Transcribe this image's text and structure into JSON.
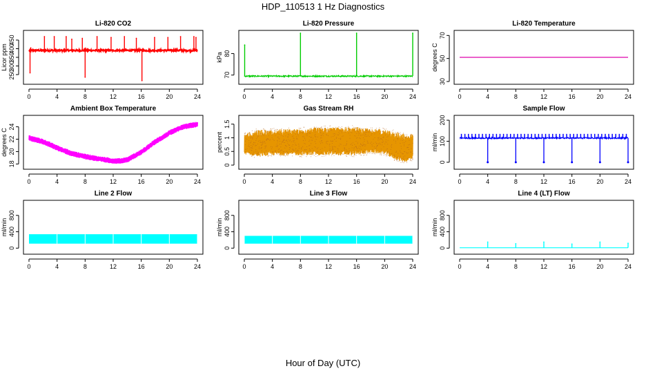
{
  "figure": {
    "title": "HDP_110513  1 Hz Diagnostics",
    "xlabel": "Hour of Day (UTC)"
  },
  "chart_data": [
    {
      "id": "co2",
      "type": "line",
      "title": "Li-820 CO2",
      "ylabel": "Licor ppm",
      "xlim": [
        0,
        24
      ],
      "ylim": [
        210,
        490
      ],
      "xticks": [
        0,
        4,
        8,
        12,
        16,
        20,
        24
      ],
      "yticks": [
        250,
        300,
        350,
        400,
        450
      ],
      "color": "#ff0000",
      "series": [
        {
          "name": "CO2",
          "baseline": 390,
          "noise": 5,
          "spikes": [
            {
              "x": 0.15,
              "y": 260
            },
            {
              "x": 0.25,
              "y": 405
            },
            {
              "x": 2.2,
              "y": 470
            },
            {
              "x": 3.6,
              "y": 470
            },
            {
              "x": 5.3,
              "y": 470
            },
            {
              "x": 6.1,
              "y": 455
            },
            {
              "x": 7.6,
              "y": 460
            },
            {
              "x": 8.0,
              "y": 235
            },
            {
              "x": 9.7,
              "y": 470
            },
            {
              "x": 11.7,
              "y": 465
            },
            {
              "x": 13.6,
              "y": 470
            },
            {
              "x": 15.3,
              "y": 460
            },
            {
              "x": 16.1,
              "y": 215
            },
            {
              "x": 17.9,
              "y": 465
            },
            {
              "x": 19.8,
              "y": 465
            },
            {
              "x": 21.6,
              "y": 470
            },
            {
              "x": 23.5,
              "y": 470
            },
            {
              "x": 23.8,
              "y": 465
            }
          ]
        }
      ]
    },
    {
      "id": "pressure",
      "type": "line",
      "title": "Li-820 Pressure",
      "ylabel": "kPa",
      "xlim": [
        0,
        24
      ],
      "ylim": [
        67,
        89.5
      ],
      "xticks": [
        0,
        4,
        8,
        12,
        16,
        20,
        24
      ],
      "yticks": [
        70,
        80
      ],
      "color": "#00cc00",
      "series": [
        {
          "name": "Pressure",
          "baseline": 69.5,
          "noise": 0.3,
          "spikes": [
            {
              "x": 0.05,
              "y": 84
            },
            {
              "x": 8.0,
              "y": 89.5
            },
            {
              "x": 16.0,
              "y": 89.5
            },
            {
              "x": 24.0,
              "y": 89.5
            }
          ]
        }
      ]
    },
    {
      "id": "licor-temp",
      "type": "line",
      "title": "Li-820 Temperature",
      "ylabel": "degrees C",
      "xlim": [
        0,
        24
      ],
      "ylim": [
        30,
        72
      ],
      "xticks": [
        0,
        4,
        8,
        12,
        16,
        20,
        24
      ],
      "yticks": [
        30,
        50,
        70
      ],
      "color": "#dd00aa",
      "series": [
        {
          "name": "Temperature",
          "baseline": 51,
          "noise": 0,
          "spikes": []
        }
      ]
    },
    {
      "id": "box-temp",
      "type": "line",
      "title": "Ambient Box Temperature",
      "ylabel": "degrees C",
      "xlim": [
        0,
        24
      ],
      "ylim": [
        17.6,
        25.4
      ],
      "xticks": [
        0,
        4,
        8,
        12,
        16,
        20,
        24
      ],
      "yticks": [
        18,
        20,
        22,
        24
      ],
      "color": "#ff00ff",
      "series": [
        {
          "name": "Box Temperature",
          "noise": 0.45,
          "x": [
            0,
            2,
            4,
            6,
            8,
            10,
            12,
            13,
            14,
            16,
            18,
            20,
            22,
            24
          ],
          "y": [
            22.2,
            21.6,
            20.6,
            19.7,
            19.2,
            18.8,
            18.5,
            18.5,
            18.7,
            19.9,
            21.6,
            23.0,
            24.0,
            24.4
          ]
        }
      ]
    },
    {
      "id": "rh",
      "type": "line",
      "title": "Gas Stream RH",
      "ylabel": "percent",
      "xlim": [
        0,
        24
      ],
      "ylim": [
        -0.05,
        1.72
      ],
      "xticks": [
        0,
        4,
        8,
        12,
        16,
        20,
        24
      ],
      "yticks": [
        0.0,
        0.5,
        1.0,
        1.5
      ],
      "color": "#e69500",
      "series": [
        {
          "name": "RH",
          "x": [
            0,
            2,
            4,
            8,
            12,
            16,
            18,
            20,
            21,
            22,
            23,
            24
          ],
          "low": [
            0.35,
            0.25,
            0.3,
            0.3,
            0.3,
            0.3,
            0.4,
            0.35,
            0.2,
            0.1,
            0.05,
            0.15
          ],
          "high": [
            1.2,
            1.35,
            1.35,
            1.4,
            1.45,
            1.45,
            1.4,
            1.35,
            1.3,
            1.25,
            1.2,
            1.2
          ]
        }
      ]
    },
    {
      "id": "sample-flow",
      "type": "line",
      "title": "Sample Flow",
      "ylabel": "ml/min",
      "xlim": [
        0,
        24
      ],
      "ylim": [
        -20,
        210
      ],
      "xticks": [
        0,
        4,
        8,
        12,
        16,
        20,
        24
      ],
      "yticks": [
        0,
        100,
        200
      ],
      "color": "#0000ff",
      "series": [
        {
          "name": "Sample Flow",
          "baseline": 115,
          "noise": 3,
          "spike_period": 0.5,
          "spike_value": 135,
          "dips": [
            4,
            8,
            12,
            16,
            20,
            24
          ],
          "dip_value": 0
        }
      ]
    },
    {
      "id": "line2-flow",
      "type": "line",
      "title": "Line 2 Flow",
      "ylabel": "ml/min",
      "xlim": [
        0,
        24
      ],
      "ylim": [
        -80,
        1100
      ],
      "xticks": [
        0,
        4,
        8,
        12,
        16,
        20,
        24
      ],
      "yticks": [
        0,
        400,
        800
      ],
      "color": "#00ffff",
      "series": [
        {
          "name": "Line 2 Flow",
          "band_low": 110,
          "band_high": 340,
          "gaps": [
            4,
            8,
            12,
            16,
            20,
            24
          ]
        }
      ]
    },
    {
      "id": "line3-flow",
      "type": "line",
      "title": "Line 3 Flow",
      "ylabel": "ml/min",
      "xlim": [
        0,
        24
      ],
      "ylim": [
        -80,
        1100
      ],
      "xticks": [
        0,
        4,
        8,
        12,
        16,
        20,
        24
      ],
      "yticks": [
        0,
        400,
        800
      ],
      "color": "#00ffff",
      "series": [
        {
          "name": "Line 3 Flow",
          "band_low": 110,
          "band_high": 300,
          "gaps": [
            0,
            4,
            8,
            12,
            16,
            20,
            24
          ]
        }
      ]
    },
    {
      "id": "line4-flow",
      "type": "line",
      "title": "Line 4 (LT) Flow",
      "ylabel": "ml/min",
      "xlim": [
        0,
        24
      ],
      "ylim": [
        -80,
        1100
      ],
      "xticks": [
        0,
        4,
        8,
        12,
        16,
        20,
        24
      ],
      "yticks": [
        0,
        400,
        800
      ],
      "color": "#00ffff",
      "series": [
        {
          "name": "Line 4 Flow",
          "baseline": 10,
          "noise": 0,
          "spikes": [
            {
              "x": 4,
              "y": 150
            },
            {
              "x": 8,
              "y": 110
            },
            {
              "x": 12,
              "y": 150
            },
            {
              "x": 16,
              "y": 100
            },
            {
              "x": 20,
              "y": 150
            },
            {
              "x": 24,
              "y": 120
            }
          ]
        }
      ]
    }
  ]
}
